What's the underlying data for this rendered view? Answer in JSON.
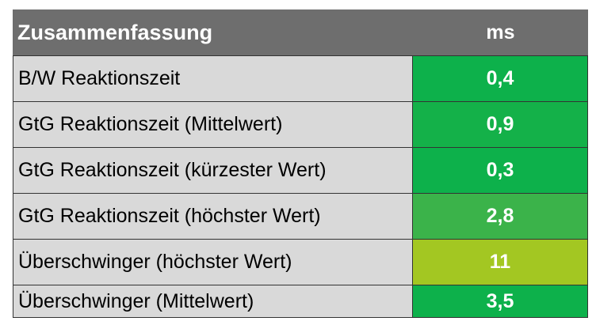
{
  "header": {
    "title": "Zusammenfassung",
    "unit": "ms"
  },
  "rows": [
    {
      "label": "B/W Reaktionszeit",
      "value": "0,4",
      "color": "#0db14b"
    },
    {
      "label": "GtG Reaktionszeit (Mittelwert)",
      "value": "0,9",
      "color": "#14b149"
    },
    {
      "label": "GtG Reaktionszeit (kürzester Wert)",
      "value": "0,3",
      "color": "#0db14b"
    },
    {
      "label": "GtG Reaktionszeit (höchster Wert)",
      "value": "2,8",
      "color": "#3bb34a"
    },
    {
      "label": "Überschwinger (höchster Wert)",
      "value": "11",
      "color": "#a3c722"
    },
    {
      "label": "Überschwinger (Mittelwert)",
      "value": "3,5",
      "color": "#0db14b"
    }
  ],
  "colors": {
    "header_bg": "#6e6e6e",
    "label_bg": "#d9d9d9"
  }
}
